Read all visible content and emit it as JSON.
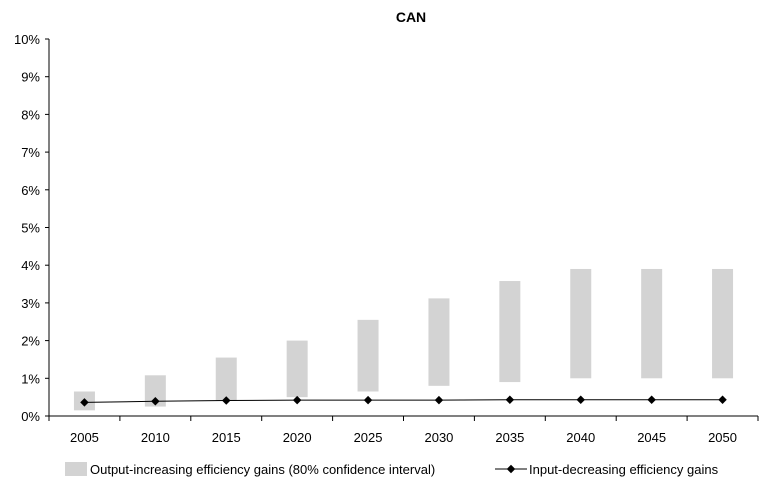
{
  "chart_data": {
    "type": "bar",
    "title": "CAN",
    "xlabel": "",
    "ylabel": "",
    "categories": [
      "2005",
      "2010",
      "2015",
      "2020",
      "2025",
      "2030",
      "2035",
      "2040",
      "2045",
      "2050"
    ],
    "ylim": [
      0,
      10
    ],
    "y_tick_labels": [
      "0%",
      "1%",
      "2%",
      "3%",
      "4%",
      "5%",
      "6%",
      "7%",
      "8%",
      "9%",
      "10%"
    ],
    "grid": false,
    "legend_placement": "bottom",
    "series": [
      {
        "name": "Output-increasing efficiency gains (80% confidence interval)",
        "kind": "range-bar",
        "color": "#d3d3d3",
        "low": [
          0.15,
          0.25,
          0.4,
          0.5,
          0.65,
          0.8,
          0.9,
          1.0,
          1.0,
          1.0
        ],
        "high": [
          0.65,
          1.08,
          1.55,
          2.0,
          2.55,
          3.12,
          3.58,
          3.9,
          3.9,
          3.9
        ]
      },
      {
        "name": "Input-decreasing efficiency gains",
        "kind": "line",
        "color": "#000000",
        "values": [
          0.36,
          0.39,
          0.41,
          0.42,
          0.42,
          0.42,
          0.43,
          0.43,
          0.43,
          0.43
        ]
      }
    ]
  }
}
